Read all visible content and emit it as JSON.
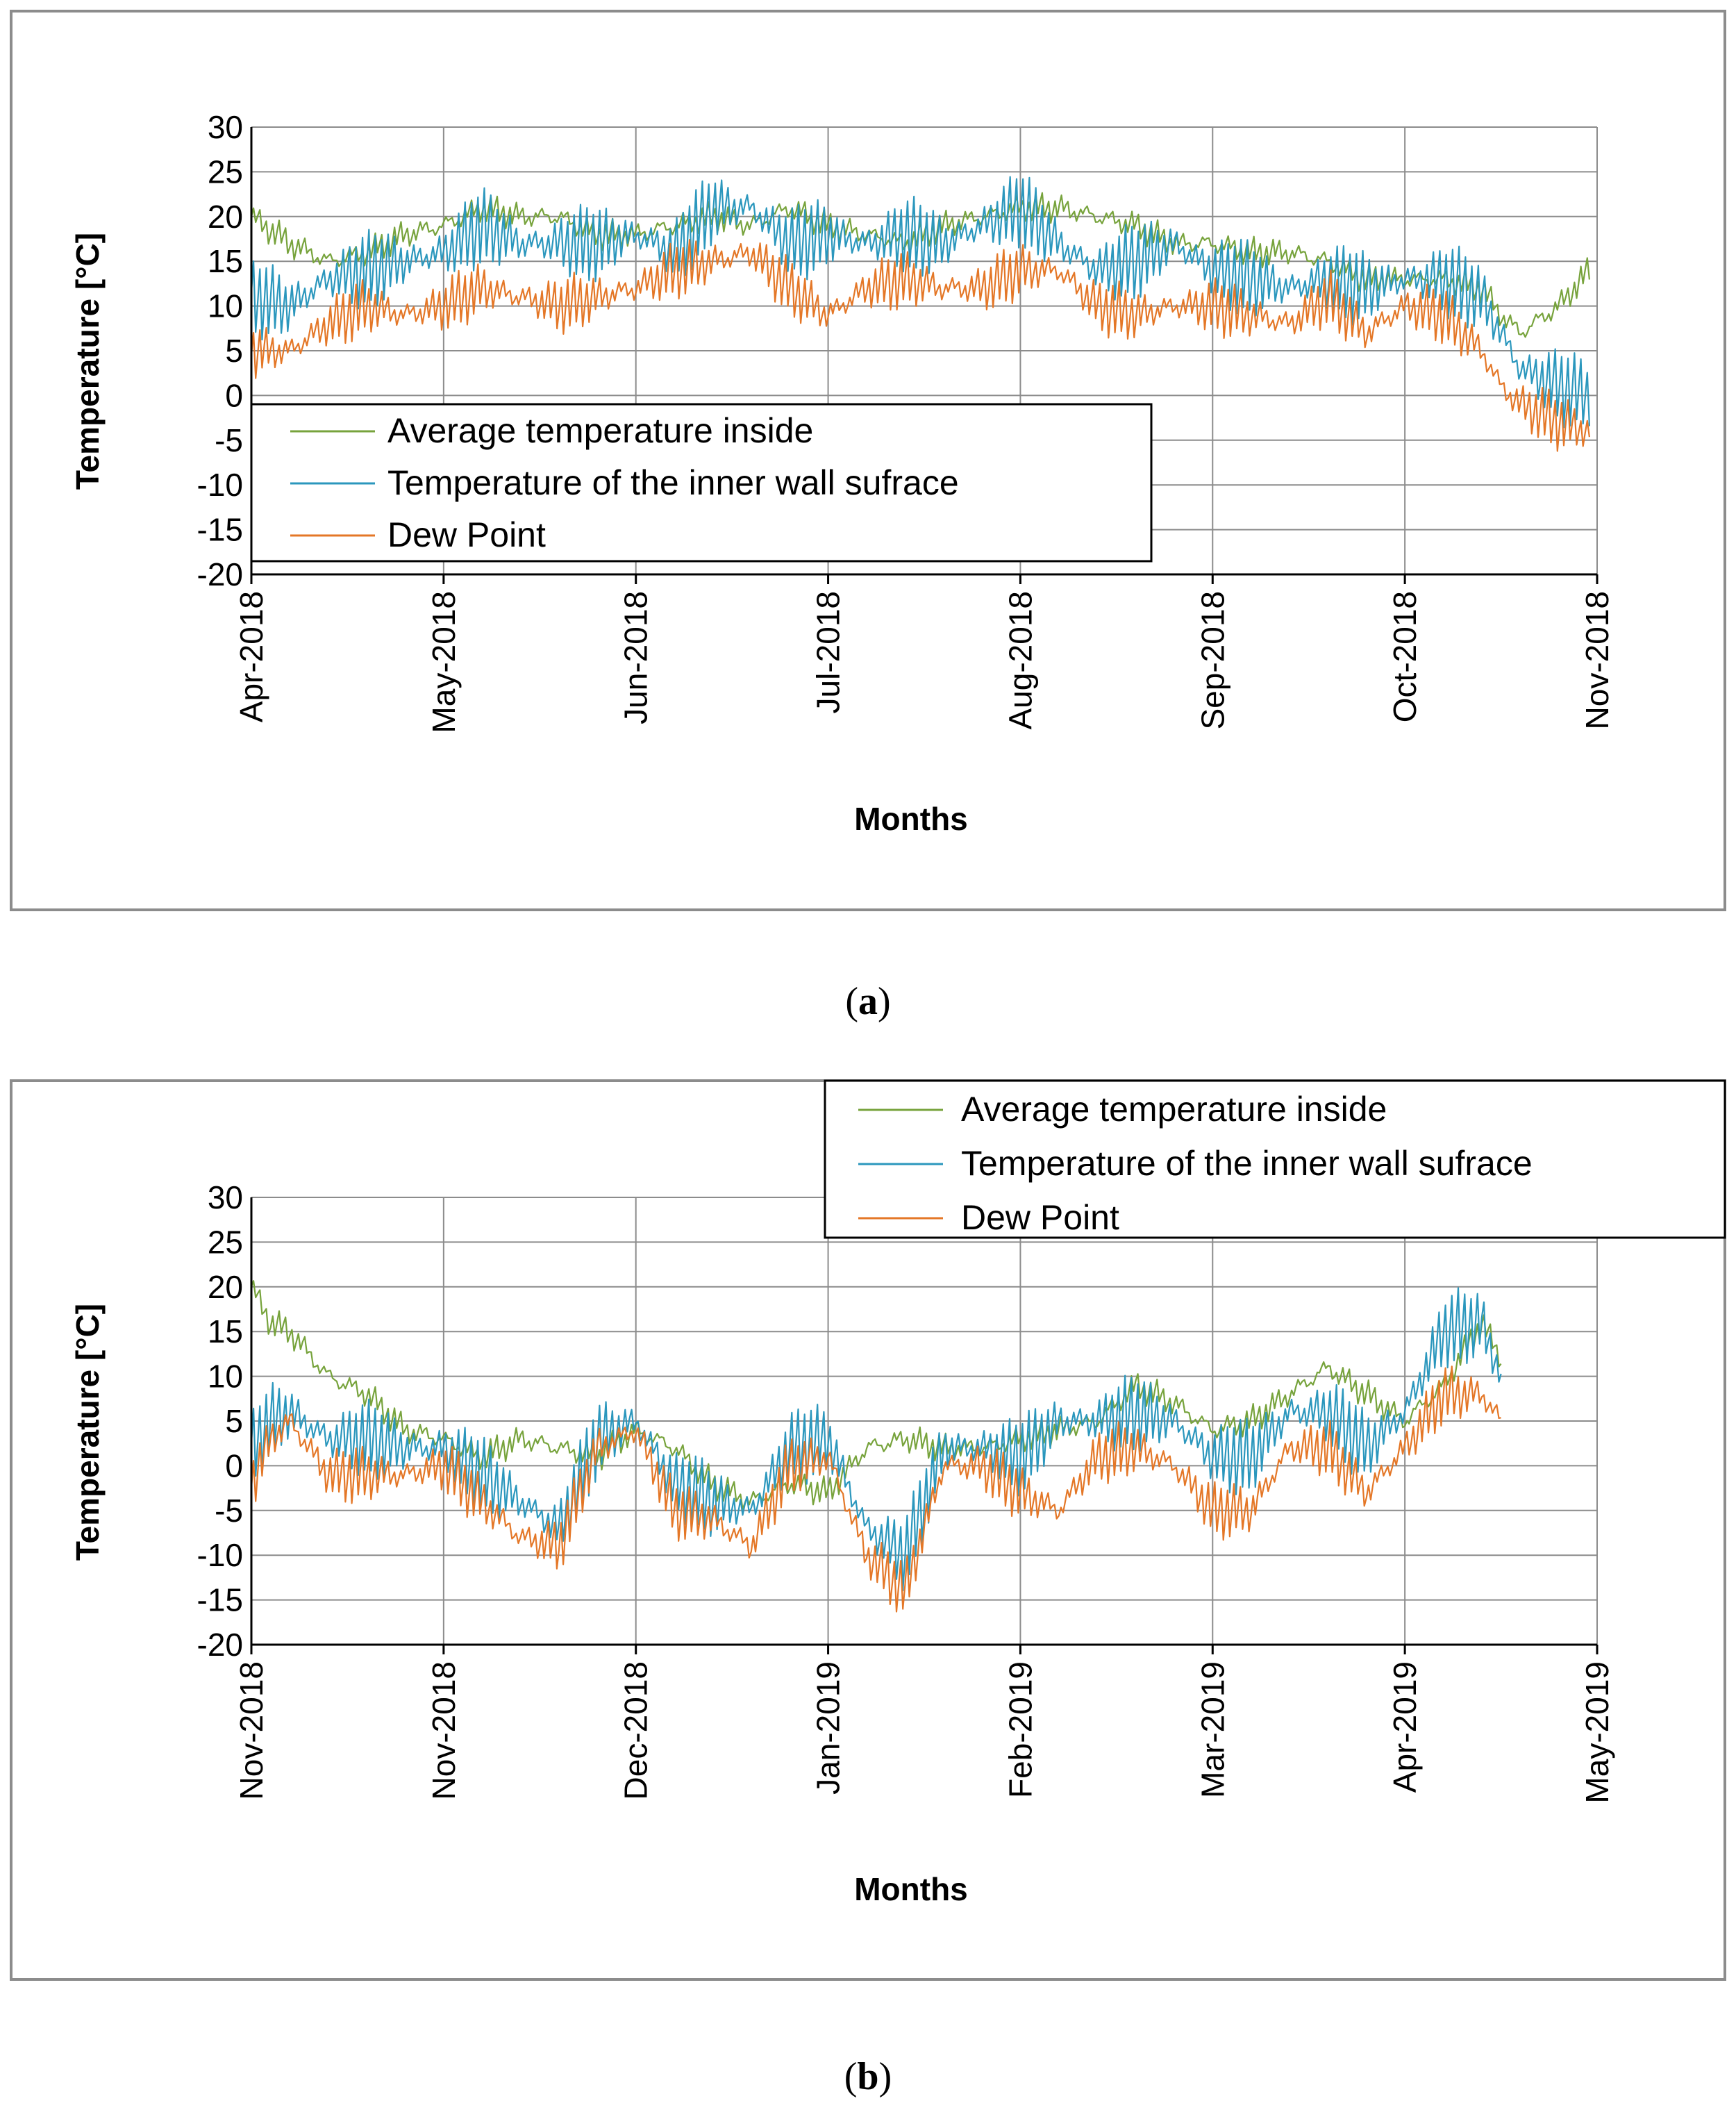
{
  "chart_data": [
    {
      "type": "line",
      "panel": "(a)",
      "caption": {
        "open": "(",
        "letter": "a",
        "close": ")"
      },
      "title": "",
      "xlabel": "Months",
      "ylabel": "Temperature [°C]",
      "ylim": [
        -20,
        30
      ],
      "yticks": [
        "30",
        "25",
        "20",
        "15",
        "10",
        "5",
        "0",
        "-5",
        "-10",
        "-15",
        "-20"
      ],
      "categories": [
        "Apr-2018",
        "May-2018",
        "Jun-2018",
        "Jul-2018",
        "Aug-2018",
        "Sep-2018",
        "Oct-2018",
        "Nov-2018"
      ],
      "grid": true,
      "legend_position": "lower-left",
      "colors": {
        "inside": "#77a33c",
        "wall": "#2b97bd",
        "dew": "#e47727"
      },
      "series": [
        {
          "name": "Average temperature inside",
          "key": "inside",
          "x": [
            0,
            0.2,
            0.4,
            0.6,
            0.8,
            1,
            1.2,
            1.4,
            1.6,
            1.8,
            2,
            2.2,
            2.4,
            2.6,
            2.8,
            3,
            3.2,
            3.4,
            3.6,
            3.8,
            4,
            4.2,
            4.4,
            4.6,
            4.8,
            5,
            5.2,
            5.4,
            5.6,
            5.8,
            6,
            6.2,
            6.4,
            6.5,
            6.6,
            6.8,
            6.96
          ],
          "values": [
            20,
            17,
            15,
            16,
            18,
            19,
            21,
            20,
            20,
            18,
            18,
            19,
            20,
            19,
            21,
            19,
            18,
            17,
            19,
            20,
            21,
            21,
            20,
            19,
            17,
            17,
            16,
            16,
            15,
            13,
            13,
            13,
            12,
            9,
            7,
            10,
            14
          ]
        },
        {
          "name": "Temperature of the inner wall sufrace",
          "key": "wall",
          "x": [
            0,
            0.2,
            0.4,
            0.6,
            0.8,
            1,
            1.2,
            1.4,
            1.6,
            1.8,
            2,
            2.2,
            2.4,
            2.6,
            2.8,
            3,
            3.2,
            3.4,
            3.6,
            3.8,
            4,
            4.2,
            4.4,
            4.6,
            4.8,
            5,
            5.2,
            5.4,
            5.6,
            5.8,
            6,
            6.2,
            6.4,
            6.5,
            6.6,
            6.8,
            6.96
          ],
          "values": [
            11,
            10,
            13,
            14,
            15,
            16,
            19,
            17,
            17,
            17,
            18,
            16,
            21,
            21,
            17,
            18,
            17,
            18,
            17,
            19,
            21,
            17,
            14,
            15,
            17,
            14,
            13,
            12,
            13,
            12,
            13,
            13,
            11,
            7,
            3,
            1,
            0
          ]
        },
        {
          "name": "Dew Point",
          "key": "dew",
          "x": [
            0,
            0.2,
            0.4,
            0.6,
            0.8,
            1,
            1.2,
            1.4,
            1.6,
            1.8,
            2,
            2.2,
            2.4,
            2.6,
            2.8,
            3,
            3.2,
            3.4,
            3.6,
            3.8,
            4,
            4.2,
            4.4,
            4.6,
            4.8,
            5,
            5.2,
            5.4,
            5.6,
            5.8,
            6,
            6.2,
            6.4,
            6.5,
            6.6,
            6.8,
            6.96
          ],
          "values": [
            5,
            5,
            8,
            10,
            9,
            10,
            12,
            11,
            10,
            11,
            12,
            14,
            15,
            16,
            12,
            9,
            12,
            13,
            12,
            12,
            14,
            14,
            10,
            9,
            10,
            10,
            9,
            8,
            11,
            7,
            10,
            9,
            5,
            1,
            -1,
            -3,
            -4
          ]
        }
      ]
    },
    {
      "type": "line",
      "panel": "(b)",
      "caption": {
        "open": "(",
        "letter": "b",
        "close": ")"
      },
      "title": "",
      "xlabel": "Months",
      "ylabel": "Temperature [°C]",
      "ylim": [
        -20,
        30
      ],
      "yticks": [
        "30",
        "25",
        "20",
        "15",
        "10",
        "5",
        "0",
        "-5",
        "-10",
        "-15",
        "-20"
      ],
      "categories": [
        "Nov-2018",
        "Nov-2018",
        "Dec-2018",
        "Jan-2019",
        "Feb-2019",
        "Mar-2019",
        "Apr-2019",
        "May-2019"
      ],
      "grid": true,
      "legend_position": "top-right",
      "colors": {
        "inside": "#77a33c",
        "wall": "#2b97bd",
        "dew": "#e47727"
      },
      "series": [
        {
          "name": "Average temperature inside",
          "key": "inside",
          "x": [
            0,
            0.1,
            0.2,
            0.4,
            0.6,
            0.8,
            1,
            1.2,
            1.4,
            1.6,
            1.8,
            2,
            2.2,
            2.4,
            2.6,
            2.8,
            3,
            3.2,
            3.4,
            3.6,
            3.8,
            4,
            4.2,
            4.4,
            4.6,
            4.8,
            5,
            5.2,
            5.4,
            5.6,
            5.8,
            6,
            6.2,
            6.4,
            6.5
          ],
          "values": [
            20,
            16,
            15,
            10,
            8,
            4,
            3,
            1,
            3,
            2,
            1,
            4,
            2,
            -2,
            -4,
            -2,
            -3,
            2,
            3,
            2,
            2,
            3,
            4,
            5,
            9,
            7,
            4,
            5,
            8,
            11,
            8,
            5,
            9,
            16,
            12
          ]
        },
        {
          "name": "Temperature of the inner wall sufrace",
          "key": "wall",
          "x": [
            0,
            0.1,
            0.2,
            0.4,
            0.6,
            0.8,
            1,
            1.2,
            1.4,
            1.6,
            1.8,
            2,
            2.2,
            2.4,
            2.6,
            2.8,
            3,
            3.2,
            3.4,
            3.6,
            3.8,
            4,
            4.2,
            4.4,
            4.6,
            4.8,
            5,
            5.2,
            5.4,
            5.6,
            5.8,
            6,
            6.2,
            6.4,
            6.5
          ],
          "values": [
            2,
            5,
            6,
            3,
            3,
            2,
            2,
            -1,
            -4,
            -7,
            3,
            5,
            -2,
            -4,
            -5,
            2,
            3,
            -7,
            -10,
            2,
            2,
            1,
            5,
            5,
            6,
            5,
            1,
            1,
            6,
            6,
            2,
            6,
            15,
            16,
            10
          ]
        },
        {
          "name": "Dew Point",
          "key": "dew",
          "x": [
            0,
            0.1,
            0.2,
            0.4,
            0.6,
            0.8,
            1,
            1.2,
            1.4,
            1.6,
            1.8,
            2,
            2.2,
            2.4,
            2.6,
            2.8,
            3,
            3.2,
            3.4,
            3.6,
            3.8,
            4,
            4.2,
            4.4,
            4.6,
            4.8,
            5,
            5.2,
            5.4,
            5.6,
            5.8,
            6,
            6.2,
            6.4,
            6.5
          ],
          "values": [
            -2,
            3,
            5,
            -1,
            -1,
            -1,
            0,
            -4,
            -8,
            -9,
            2,
            4,
            -5,
            -6,
            -9,
            0,
            1,
            -10,
            -14,
            0,
            0,
            -3,
            -5,
            1,
            2,
            0,
            -5,
            -5,
            2,
            2,
            -3,
            2,
            8,
            8,
            5
          ]
        }
      ]
    }
  ]
}
